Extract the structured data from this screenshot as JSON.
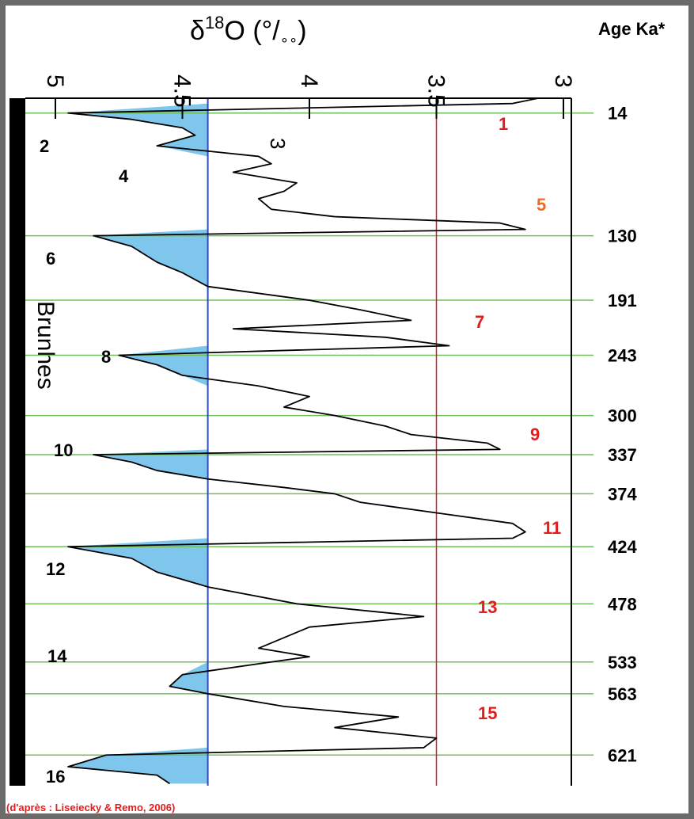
{
  "title_parts": {
    "delta": "δ",
    "sup": "18",
    "rest": "O (°/",
    "permil": "∘∘",
    "close": ")"
  },
  "age_header": "Age Ka*",
  "chron_label": "Brunhes",
  "source_note": "(d'après : Liseiecky & Remo, 2006)",
  "colors": {
    "curve": "#000000",
    "glacial_fill": "#7fc6ec",
    "glacial_line": "#2f4fb4",
    "interglacial_line": "#e0142a",
    "age_lines": "#6fbf5a",
    "cold_label": "#3a4ea0",
    "warm_label": "#e21d1d",
    "warm_label_alt": "#ee6a2a",
    "source_text": "#e21d1d",
    "frame": "#6b6b6b"
  },
  "chart_data": {
    "type": "line",
    "orientation": "vertical-depth",
    "title": "δ18O (°/∘∘)",
    "xlabel": "δ18O (°/∘∘)",
    "ylabel": "Age Ka*",
    "x_reversed": true,
    "xlim": [
      5.1,
      3.0
    ],
    "ylim": [
      0,
      650
    ],
    "x_ticks": [
      "5",
      "4.5",
      "4",
      "3.5",
      "3"
    ],
    "x_tick_values": [
      5,
      4.5,
      4,
      3.5,
      3
    ],
    "glacial_threshold": 4.4,
    "interglacial_threshold": 3.5,
    "age_boundaries": [
      14,
      130,
      191,
      243,
      300,
      337,
      374,
      424,
      478,
      533,
      563,
      621
    ],
    "cold_stages": [
      "2",
      "4",
      "6",
      "8",
      "10",
      "12",
      "14",
      "16"
    ],
    "warm_stages": [
      "1",
      "3",
      "5",
      "7",
      "9",
      "11",
      "13",
      "15"
    ],
    "series": [
      {
        "age": [
          0,
          5,
          14,
          20,
          28,
          35,
          45,
          55,
          62,
          70,
          80,
          88,
          95,
          105,
          112,
          118,
          124,
          130,
          140,
          155,
          165,
          178,
          191,
          200,
          210,
          218,
          226,
          234,
          243,
          252,
          262,
          272,
          282,
          292,
          300,
          310,
          318,
          326,
          332,
          337,
          344,
          352,
          360,
          368,
          374,
          382,
          392,
          402,
          410,
          416,
          424,
          435,
          448,
          462,
          478,
          490,
          500,
          510,
          520,
          528,
          533,
          545,
          556,
          563,
          575,
          585,
          595,
          605,
          614,
          621,
          632,
          640,
          648
        ],
        "d18o": [
          3.1,
          3.2,
          4.95,
          4.7,
          4.5,
          4.45,
          4.6,
          4.2,
          4.15,
          4.3,
          4.05,
          4.1,
          4.2,
          4.15,
          3.9,
          3.25,
          3.15,
          4.85,
          4.7,
          4.6,
          4.5,
          4.4,
          4.0,
          3.8,
          3.6,
          4.3,
          3.7,
          3.45,
          4.75,
          4.6,
          4.5,
          4.2,
          4.0,
          4.1,
          3.9,
          3.7,
          3.6,
          3.3,
          3.25,
          4.85,
          4.7,
          4.6,
          4.4,
          4.1,
          3.9,
          3.8,
          3.5,
          3.2,
          3.15,
          3.2,
          4.95,
          4.7,
          4.6,
          4.4,
          4.05,
          3.55,
          4.0,
          4.1,
          4.2,
          4.0,
          4.15,
          4.5,
          4.55,
          4.4,
          4.1,
          3.65,
          3.9,
          3.5,
          3.55,
          4.8,
          4.95,
          4.6,
          4.55
        ]
      }
    ]
  }
}
